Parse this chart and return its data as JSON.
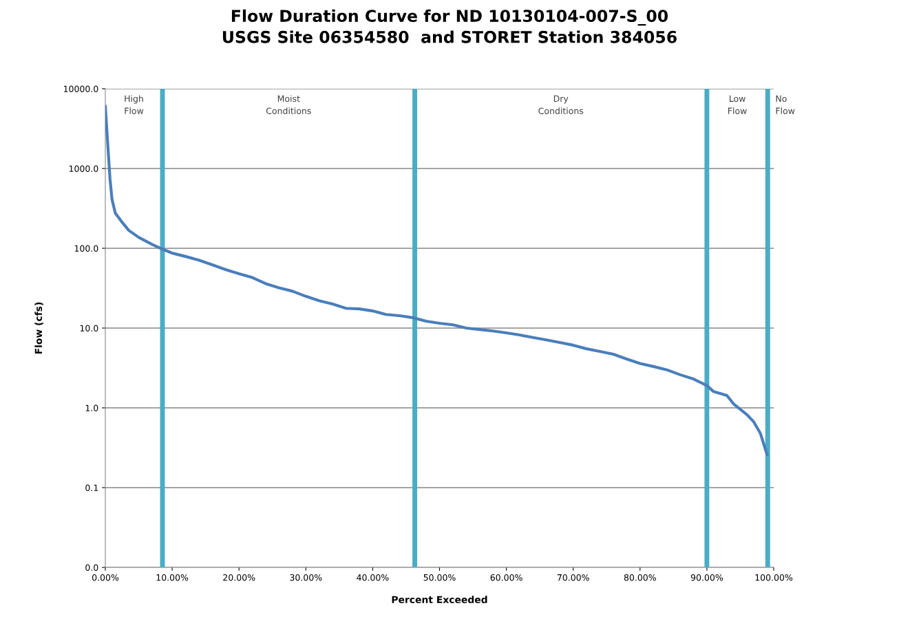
{
  "chart_data": {
    "type": "line",
    "title": "Flow Duration Curve for ND 10130104-007-S_00\nUSGS Site 06354580  and STORET Station 384056",
    "xlabel": "Percent Exceeded",
    "ylabel": "Flow (cfs)",
    "log": "y",
    "grid": "y",
    "xlim": [
      0,
      100
    ],
    "ylim": [
      0.01,
      10000
    ],
    "xticks": [
      {
        "value": 0,
        "label": "0.00%"
      },
      {
        "value": 10,
        "label": "10.00%"
      },
      {
        "value": 20,
        "label": "20.00%"
      },
      {
        "value": 30,
        "label": "30.00%"
      },
      {
        "value": 40,
        "label": "40.00%"
      },
      {
        "value": 50,
        "label": "50.00%"
      },
      {
        "value": 60,
        "label": "60.00%"
      },
      {
        "value": 70,
        "label": "70.00%"
      },
      {
        "value": 80,
        "label": "80.00%"
      },
      {
        "value": 90,
        "label": "90.00%"
      },
      {
        "value": 100,
        "label": "100.00%"
      }
    ],
    "yticks": [
      {
        "value": 0.01,
        "label": "0.0"
      },
      {
        "value": 0.1,
        "label": "0.1"
      },
      {
        "value": 1,
        "label": "1.0"
      },
      {
        "value": 10,
        "label": "10.0"
      },
      {
        "value": 100,
        "label": "100.0"
      },
      {
        "value": 1000,
        "label": "1000.0"
      },
      {
        "value": 10000,
        "label": "10000.0"
      }
    ],
    "x": [
      0,
      0.3,
      0.7,
      1,
      1.5,
      2.5,
      3.5,
      5,
      7,
      8.5,
      10,
      12,
      14,
      16,
      18,
      20,
      22,
      24,
      26,
      28,
      30,
      32,
      34,
      36,
      38,
      40,
      42,
      44,
      46,
      48,
      50,
      52,
      54,
      56,
      58,
      60,
      62,
      64,
      66,
      68,
      70,
      72,
      74,
      76,
      78,
      80,
      82,
      84,
      86,
      88,
      90,
      91,
      93,
      94,
      95,
      96,
      97,
      98,
      99
    ],
    "series": [
      {
        "color": "#4a7ebb",
        "values": [
          6000,
          2440,
          743,
          410,
          275,
          213,
          168,
          137,
          112,
          98,
          87,
          79,
          71,
          62,
          54,
          48,
          43,
          36,
          32,
          29,
          25,
          22,
          20,
          17.7,
          17.4,
          16.4,
          14.8,
          14.3,
          13.5,
          12.2,
          11.5,
          11,
          10,
          9.6,
          9.2,
          8.7,
          8.2,
          7.6,
          7.1,
          6.6,
          6.1,
          5.5,
          5.1,
          4.7,
          4.1,
          3.6,
          3.3,
          3,
          2.6,
          2.3,
          1.9,
          1.6,
          1.43,
          1.12,
          0.96,
          0.82,
          0.67,
          0.48,
          0.26
        ]
      }
    ],
    "ref_lines": [
      {
        "axis": "x",
        "value": 8.55,
        "color": "#4bacc6"
      },
      {
        "axis": "x",
        "value": 46.3,
        "color": "#4bacc6"
      },
      {
        "axis": "x",
        "value": 90,
        "color": "#4bacc6"
      },
      {
        "axis": "x",
        "value": 99.1,
        "color": "#4bacc6"
      }
    ],
    "annotations": [
      "High\nFlow",
      "Moist\nConditions",
      "Dry\nConditions",
      "Low\nFlow",
      "No\nFlow"
    ]
  }
}
